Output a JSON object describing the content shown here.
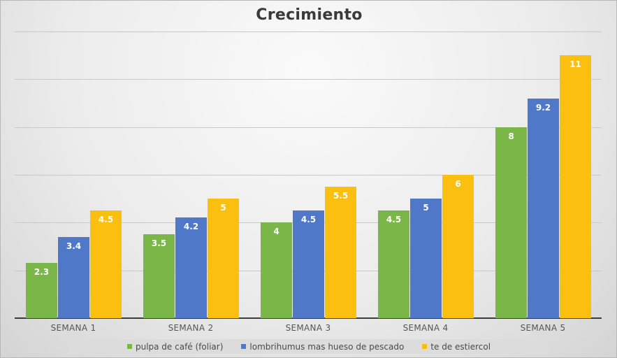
{
  "chart_data": {
    "type": "bar",
    "title": "Crecimiento",
    "xlabel": "",
    "ylabel": "",
    "ylim": [
      0,
      12
    ],
    "grid": true,
    "yticks": [
      0,
      2,
      4,
      6,
      8,
      10,
      12
    ],
    "show_y_tick_labels": false,
    "legend_position": "bottom",
    "categories": [
      "SEMANA 1",
      "SEMANA 2",
      "SEMANA 3",
      "SEMANA 4",
      "SEMANA 5"
    ],
    "series": [
      {
        "name": "pulpa de café (foliar)",
        "color": "#7ab648",
        "values": [
          2.3,
          3.5,
          4,
          4.5,
          8
        ],
        "labels": [
          "2.3",
          "3.5",
          "4",
          "4.5",
          "8"
        ]
      },
      {
        "name": "lombrihumus mas hueso de pescado",
        "color": "#4f78c8",
        "values": [
          3.4,
          4.2,
          4.5,
          5,
          9.2
        ],
        "labels": [
          "3.4",
          "4.2",
          "4.5",
          "5",
          "9.2"
        ]
      },
      {
        "name": "te de estiercol",
        "color": "#fbbf10",
        "values": [
          4.5,
          5,
          5.5,
          6,
          11
        ],
        "labels": [
          "4.5",
          "5",
          "5.5",
          "6",
          "11"
        ]
      }
    ]
  }
}
